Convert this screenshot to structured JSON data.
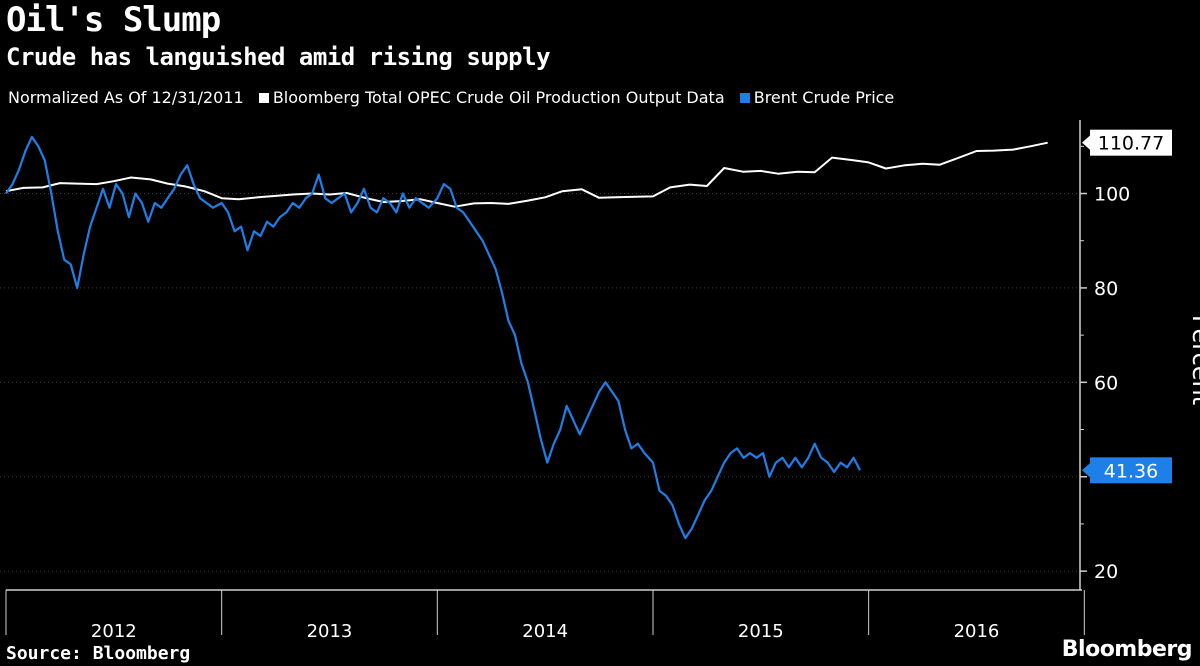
{
  "title": "Oil's Slump",
  "subtitle": "Crude has languished amid rising supply",
  "legend": {
    "prefix": "Normalized As Of 12/31/2011",
    "items": [
      {
        "label": "Bloomberg Total OPEC Crude Oil Production Output Data",
        "color": "#ffffff"
      },
      {
        "label": "Brent Crude Price",
        "color": "#1f7fe8"
      }
    ]
  },
  "footer": {
    "source": "Source: Bloomberg",
    "brand": "Bloomberg"
  },
  "chart_data": {
    "type": "line",
    "title": "Oil's Slump",
    "ylabel": "Percent",
    "xlabel": "",
    "x_domain": [
      2012.0,
      2016.98
    ],
    "ylim": [
      16,
      116
    ],
    "y_ticks": [
      20,
      40,
      60,
      80,
      100
    ],
    "y_tick_labels": [
      "20",
      "",
      "60",
      "80",
      "100"
    ],
    "year_labels": [
      "2012",
      "2013",
      "2014",
      "2015",
      "2016"
    ],
    "grid": true,
    "series": [
      {
        "name": "Bloomberg Total OPEC Crude Oil Production Output Data",
        "color": "#ffffff",
        "last_value": "110.77",
        "points": [
          [
            2012.0,
            100.5
          ],
          [
            2012.08,
            101.2
          ],
          [
            2012.17,
            101.3
          ],
          [
            2012.25,
            102.2
          ],
          [
            2012.33,
            102.1
          ],
          [
            2012.42,
            102.0
          ],
          [
            2012.5,
            102.6
          ],
          [
            2012.58,
            103.4
          ],
          [
            2012.67,
            103.0
          ],
          [
            2012.75,
            102.1
          ],
          [
            2012.83,
            101.5
          ],
          [
            2012.92,
            100.5
          ],
          [
            2013.0,
            99.0
          ],
          [
            2013.08,
            98.8
          ],
          [
            2013.17,
            99.2
          ],
          [
            2013.25,
            99.5
          ],
          [
            2013.33,
            99.8
          ],
          [
            2013.42,
            100.0
          ],
          [
            2013.5,
            99.8
          ],
          [
            2013.58,
            100.1
          ],
          [
            2013.67,
            99.0
          ],
          [
            2013.75,
            98.2
          ],
          [
            2013.83,
            98.4
          ],
          [
            2013.92,
            98.8
          ],
          [
            2014.0,
            98.0
          ],
          [
            2014.08,
            97.2
          ],
          [
            2014.17,
            97.9
          ],
          [
            2014.25,
            98.0
          ],
          [
            2014.33,
            97.8
          ],
          [
            2014.42,
            98.5
          ],
          [
            2014.5,
            99.2
          ],
          [
            2014.58,
            100.5
          ],
          [
            2014.67,
            100.9
          ],
          [
            2014.75,
            99.1
          ],
          [
            2014.83,
            99.2
          ],
          [
            2014.92,
            99.3
          ],
          [
            2015.0,
            99.4
          ],
          [
            2015.08,
            101.3
          ],
          [
            2015.17,
            101.9
          ],
          [
            2015.25,
            101.6
          ],
          [
            2015.33,
            105.4
          ],
          [
            2015.42,
            104.6
          ],
          [
            2015.5,
            104.8
          ],
          [
            2015.58,
            104.2
          ],
          [
            2015.67,
            104.6
          ],
          [
            2015.75,
            104.5
          ],
          [
            2015.83,
            107.6
          ],
          [
            2015.92,
            107.1
          ],
          [
            2016.0,
            106.6
          ],
          [
            2016.08,
            105.3
          ],
          [
            2016.17,
            106.0
          ],
          [
            2016.25,
            106.3
          ],
          [
            2016.33,
            106.1
          ],
          [
            2016.42,
            107.6
          ],
          [
            2016.5,
            109.0
          ],
          [
            2016.58,
            109.1
          ],
          [
            2016.67,
            109.3
          ],
          [
            2016.75,
            110.0
          ],
          [
            2016.83,
            110.77
          ]
        ]
      },
      {
        "name": "Brent Crude Price",
        "color": "#1f7fe8",
        "last_value": "41.36",
        "points": [
          [
            2012.0,
            100
          ],
          [
            2012.03,
            102
          ],
          [
            2012.06,
            105
          ],
          [
            2012.09,
            109
          ],
          [
            2012.12,
            112
          ],
          [
            2012.15,
            110
          ],
          [
            2012.18,
            107
          ],
          [
            2012.21,
            100
          ],
          [
            2012.24,
            92
          ],
          [
            2012.27,
            86
          ],
          [
            2012.3,
            85
          ],
          [
            2012.33,
            80
          ],
          [
            2012.36,
            87
          ],
          [
            2012.39,
            93
          ],
          [
            2012.42,
            97
          ],
          [
            2012.45,
            101
          ],
          [
            2012.48,
            97
          ],
          [
            2012.51,
            102
          ],
          [
            2012.54,
            100
          ],
          [
            2012.57,
            95
          ],
          [
            2012.6,
            100
          ],
          [
            2012.63,
            98
          ],
          [
            2012.66,
            94
          ],
          [
            2012.69,
            98
          ],
          [
            2012.72,
            97
          ],
          [
            2012.75,
            99
          ],
          [
            2012.78,
            101
          ],
          [
            2012.81,
            104
          ],
          [
            2012.84,
            106
          ],
          [
            2012.87,
            102
          ],
          [
            2012.9,
            99
          ],
          [
            2012.93,
            98
          ],
          [
            2012.96,
            97
          ],
          [
            2013.0,
            98
          ],
          [
            2013.03,
            96
          ],
          [
            2013.06,
            92
          ],
          [
            2013.09,
            93
          ],
          [
            2013.12,
            88
          ],
          [
            2013.15,
            92
          ],
          [
            2013.18,
            91
          ],
          [
            2013.21,
            94
          ],
          [
            2013.24,
            93
          ],
          [
            2013.27,
            95
          ],
          [
            2013.3,
            96
          ],
          [
            2013.33,
            98
          ],
          [
            2013.36,
            97
          ],
          [
            2013.39,
            99
          ],
          [
            2013.42,
            100
          ],
          [
            2013.45,
            104
          ],
          [
            2013.48,
            99
          ],
          [
            2013.51,
            98
          ],
          [
            2013.54,
            99
          ],
          [
            2013.57,
            100
          ],
          [
            2013.6,
            96
          ],
          [
            2013.63,
            98
          ],
          [
            2013.66,
            101
          ],
          [
            2013.69,
            97
          ],
          [
            2013.72,
            96
          ],
          [
            2013.75,
            99
          ],
          [
            2013.78,
            98
          ],
          [
            2013.81,
            96
          ],
          [
            2013.84,
            100
          ],
          [
            2013.87,
            97
          ],
          [
            2013.9,
            99
          ],
          [
            2013.93,
            98
          ],
          [
            2013.96,
            97
          ],
          [
            2014.0,
            99
          ],
          [
            2014.03,
            102
          ],
          [
            2014.06,
            101
          ],
          [
            2014.09,
            97
          ],
          [
            2014.12,
            96
          ],
          [
            2014.15,
            94
          ],
          [
            2014.18,
            92
          ],
          [
            2014.21,
            90
          ],
          [
            2014.24,
            87
          ],
          [
            2014.27,
            84
          ],
          [
            2014.3,
            79
          ],
          [
            2014.33,
            73
          ],
          [
            2014.36,
            70
          ],
          [
            2014.39,
            64
          ],
          [
            2014.42,
            60
          ],
          [
            2014.45,
            54
          ],
          [
            2014.48,
            48
          ],
          [
            2014.51,
            43
          ],
          [
            2014.54,
            47
          ],
          [
            2014.57,
            50
          ],
          [
            2014.6,
            55
          ],
          [
            2014.63,
            52
          ],
          [
            2014.66,
            49
          ],
          [
            2014.69,
            52
          ],
          [
            2014.72,
            55
          ],
          [
            2014.75,
            58
          ],
          [
            2014.78,
            60
          ],
          [
            2014.81,
            58
          ],
          [
            2014.84,
            56
          ],
          [
            2014.87,
            50
          ],
          [
            2014.9,
            46
          ],
          [
            2014.93,
            47
          ],
          [
            2014.96,
            45
          ],
          [
            2015.0,
            43
          ],
          [
            2015.03,
            37
          ],
          [
            2015.06,
            36
          ],
          [
            2015.09,
            34
          ],
          [
            2015.12,
            30
          ],
          [
            2015.15,
            27
          ],
          [
            2015.18,
            29
          ],
          [
            2015.21,
            32
          ],
          [
            2015.24,
            35
          ],
          [
            2015.27,
            37
          ],
          [
            2015.3,
            40
          ],
          [
            2015.33,
            43
          ],
          [
            2015.36,
            45
          ],
          [
            2015.39,
            46
          ],
          [
            2015.42,
            44
          ],
          [
            2015.45,
            45
          ],
          [
            2015.48,
            44
          ],
          [
            2015.51,
            45
          ],
          [
            2015.54,
            40
          ],
          [
            2015.57,
            43
          ],
          [
            2015.6,
            44
          ],
          [
            2015.63,
            42
          ],
          [
            2015.66,
            44
          ],
          [
            2015.69,
            42
          ],
          [
            2015.72,
            44
          ],
          [
            2015.75,
            47
          ],
          [
            2015.78,
            44
          ],
          [
            2015.81,
            43
          ],
          [
            2015.84,
            41
          ],
          [
            2015.87,
            43
          ],
          [
            2015.9,
            42
          ],
          [
            2015.93,
            44
          ],
          [
            2015.96,
            41.36
          ]
        ]
      }
    ]
  }
}
